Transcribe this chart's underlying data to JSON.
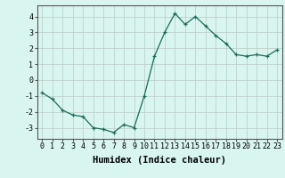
{
  "x": [
    0,
    1,
    2,
    3,
    4,
    5,
    6,
    7,
    8,
    9,
    10,
    11,
    12,
    13,
    14,
    15,
    16,
    17,
    18,
    19,
    20,
    21,
    22,
    23
  ],
  "y": [
    -0.8,
    -1.2,
    -1.9,
    -2.2,
    -2.3,
    -3.0,
    -3.1,
    -3.3,
    -2.8,
    -3.0,
    -1.0,
    1.5,
    3.0,
    4.2,
    3.5,
    4.0,
    3.4,
    2.8,
    2.3,
    1.6,
    1.5,
    1.6,
    1.5,
    1.9
  ],
  "line_color": "#1a6b5a",
  "marker": "+",
  "marker_size": 3,
  "bg_color": "#d8f5ef",
  "grid_color": "#c0d0cc",
  "axis_color": "#555555",
  "xlabel": "Humidex (Indice chaleur)",
  "xlim": [
    -0.5,
    23.5
  ],
  "ylim": [
    -3.7,
    4.7
  ],
  "yticks": [
    -3,
    -2,
    -1,
    0,
    1,
    2,
    3,
    4
  ],
  "xticks": [
    0,
    1,
    2,
    3,
    4,
    5,
    6,
    7,
    8,
    9,
    10,
    11,
    12,
    13,
    14,
    15,
    16,
    17,
    18,
    19,
    20,
    21,
    22,
    23
  ],
  "tick_fontsize": 6,
  "xlabel_fontsize": 7.5
}
